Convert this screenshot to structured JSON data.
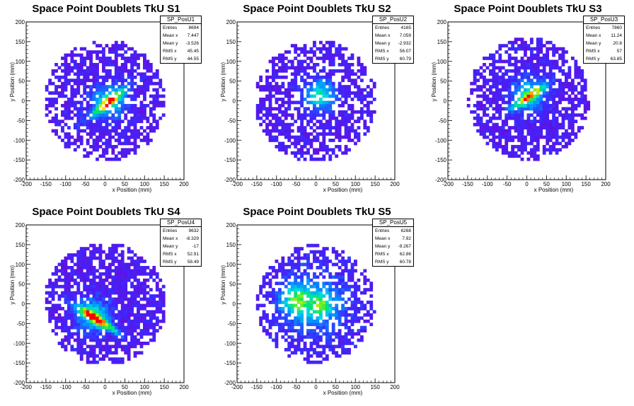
{
  "chart_data": [
    {
      "type": "heatmap",
      "title": "Space Point Doublets TkU S1",
      "xlabel": "x Position (mm)",
      "ylabel": "y Position (mm)",
      "xlim": [
        -200,
        200
      ],
      "ylim": [
        -200,
        200
      ],
      "xticks": [
        -200,
        -150,
        -100,
        -50,
        0,
        50,
        100,
        150,
        200
      ],
      "yticks": [
        -200,
        -150,
        -100,
        -50,
        0,
        50,
        100,
        150,
        200
      ],
      "pattern": {
        "radius": 155,
        "center": [
          0,
          0
        ],
        "fill": 0.72,
        "band_angle_deg": 38,
        "band_center": [
          8,
          -4
        ],
        "band_strength": 1.0,
        "hotspot": [
          10,
          0
        ]
      },
      "stats": {
        "name": "SP_PosU1",
        "entries": "8694",
        "mean_x": "7.447",
        "mean_y": "-3.526",
        "rms_x": "45.45",
        "rms_y": "44.55"
      }
    },
    {
      "type": "heatmap",
      "title": "Space Point Doublets TkU S2",
      "xlabel": "x Position (mm)",
      "ylabel": "y Position (mm)",
      "xlim": [
        -200,
        200
      ],
      "ylim": [
        -200,
        200
      ],
      "xticks": [
        -200,
        -150,
        -100,
        -50,
        0,
        50,
        100,
        150,
        200
      ],
      "yticks": [
        -200,
        -150,
        -100,
        -50,
        0,
        50,
        100,
        150,
        200
      ],
      "pattern": {
        "radius": 155,
        "center": [
          0,
          0
        ],
        "fill": 0.7,
        "band_angle_deg": 0,
        "band_center": [
          0,
          0
        ],
        "band_strength": 0.0,
        "hotspot": [
          10,
          15
        ]
      },
      "stats": {
        "name": "SP_PosU2",
        "entries": "4165",
        "mean_x": "7.059",
        "mean_y": "-2.932",
        "rms_x": "56.07",
        "rms_y": "60.79"
      }
    },
    {
      "type": "heatmap",
      "title": "Space Point Doublets TkU S3",
      "xlabel": "x Position (mm)",
      "ylabel": "y Position (mm)",
      "xlim": [
        -200,
        200
      ],
      "ylim": [
        -200,
        200
      ],
      "xticks": [
        -200,
        -150,
        -100,
        -50,
        0,
        50,
        100,
        150,
        200
      ],
      "yticks": [
        -200,
        -150,
        -100,
        -50,
        0,
        50,
        100,
        150,
        200
      ],
      "pattern": {
        "radius": 155,
        "center": [
          5,
          5
        ],
        "fill": 0.82,
        "band_angle_deg": 35,
        "band_center": [
          5,
          10
        ],
        "band_strength": 0.8,
        "hotspot": [
          5,
          15
        ]
      },
      "stats": {
        "name": "SP_PosU3",
        "entries": "7860",
        "mean_x": "11.24",
        "mean_y": "20.8",
        "rms_x": "57",
        "rms_y": "63.85"
      }
    },
    {
      "type": "heatmap",
      "title": "Space Point Doublets TkU S4",
      "xlabel": "x Position (mm)",
      "ylabel": "y Position (mm)",
      "xlim": [
        -200,
        200
      ],
      "ylim": [
        -200,
        200
      ],
      "xticks": [
        -200,
        -150,
        -100,
        -50,
        0,
        50,
        100,
        150,
        200
      ],
      "yticks": [
        -200,
        -150,
        -100,
        -50,
        0,
        50,
        100,
        150,
        200
      ],
      "pattern": {
        "radius": 155,
        "center": [
          0,
          0
        ],
        "fill": 0.9,
        "band_angle_deg": -32,
        "band_center": [
          -20,
          -40
        ],
        "band_strength": 1.2,
        "hotspot": [
          -30,
          -30
        ]
      },
      "stats": {
        "name": "SP_PosU4",
        "entries": "9632",
        "mean_x": "-8.329",
        "mean_y": "-17",
        "rms_x": "52.91",
        "rms_y": "58.49"
      }
    },
    {
      "type": "heatmap",
      "title": "Space Point Doublets TkU S5",
      "xlabel": "x Position (mm)",
      "ylabel": "y Position (mm)",
      "xlim": [
        -200,
        200
      ],
      "ylim": [
        -200,
        200
      ],
      "xticks": [
        -200,
        -150,
        -100,
        -50,
        0,
        50,
        100,
        150,
        200
      ],
      "yticks": [
        -200,
        -150,
        -100,
        -50,
        0,
        50,
        100,
        150,
        200
      ],
      "pattern": {
        "radius": 150,
        "center": [
          0,
          0
        ],
        "fill": 0.7,
        "band_angle_deg": 0,
        "band_center": [
          0,
          0
        ],
        "band_strength": 0.0,
        "hotspot": [
          -50,
          10
        ],
        "hotspot2": [
          15,
          -5
        ],
        "warm_core": true
      },
      "stats": {
        "name": "SP_PosU5",
        "entries": "6268",
        "mean_x": "7.92",
        "mean_y": "-9.267",
        "rms_x": "62.86",
        "rms_y": "60.78"
      }
    }
  ],
  "stats_labels": {
    "entries": "Entries",
    "mean_x": "Mean x",
    "mean_y": "Mean y",
    "rms_x": "RMS x",
    "rms_y": "RMS y"
  },
  "colors": {
    "low": "#6a0bd9",
    "mid": "#00c8ff",
    "high": "#ff0000",
    "axis": "#000000"
  }
}
